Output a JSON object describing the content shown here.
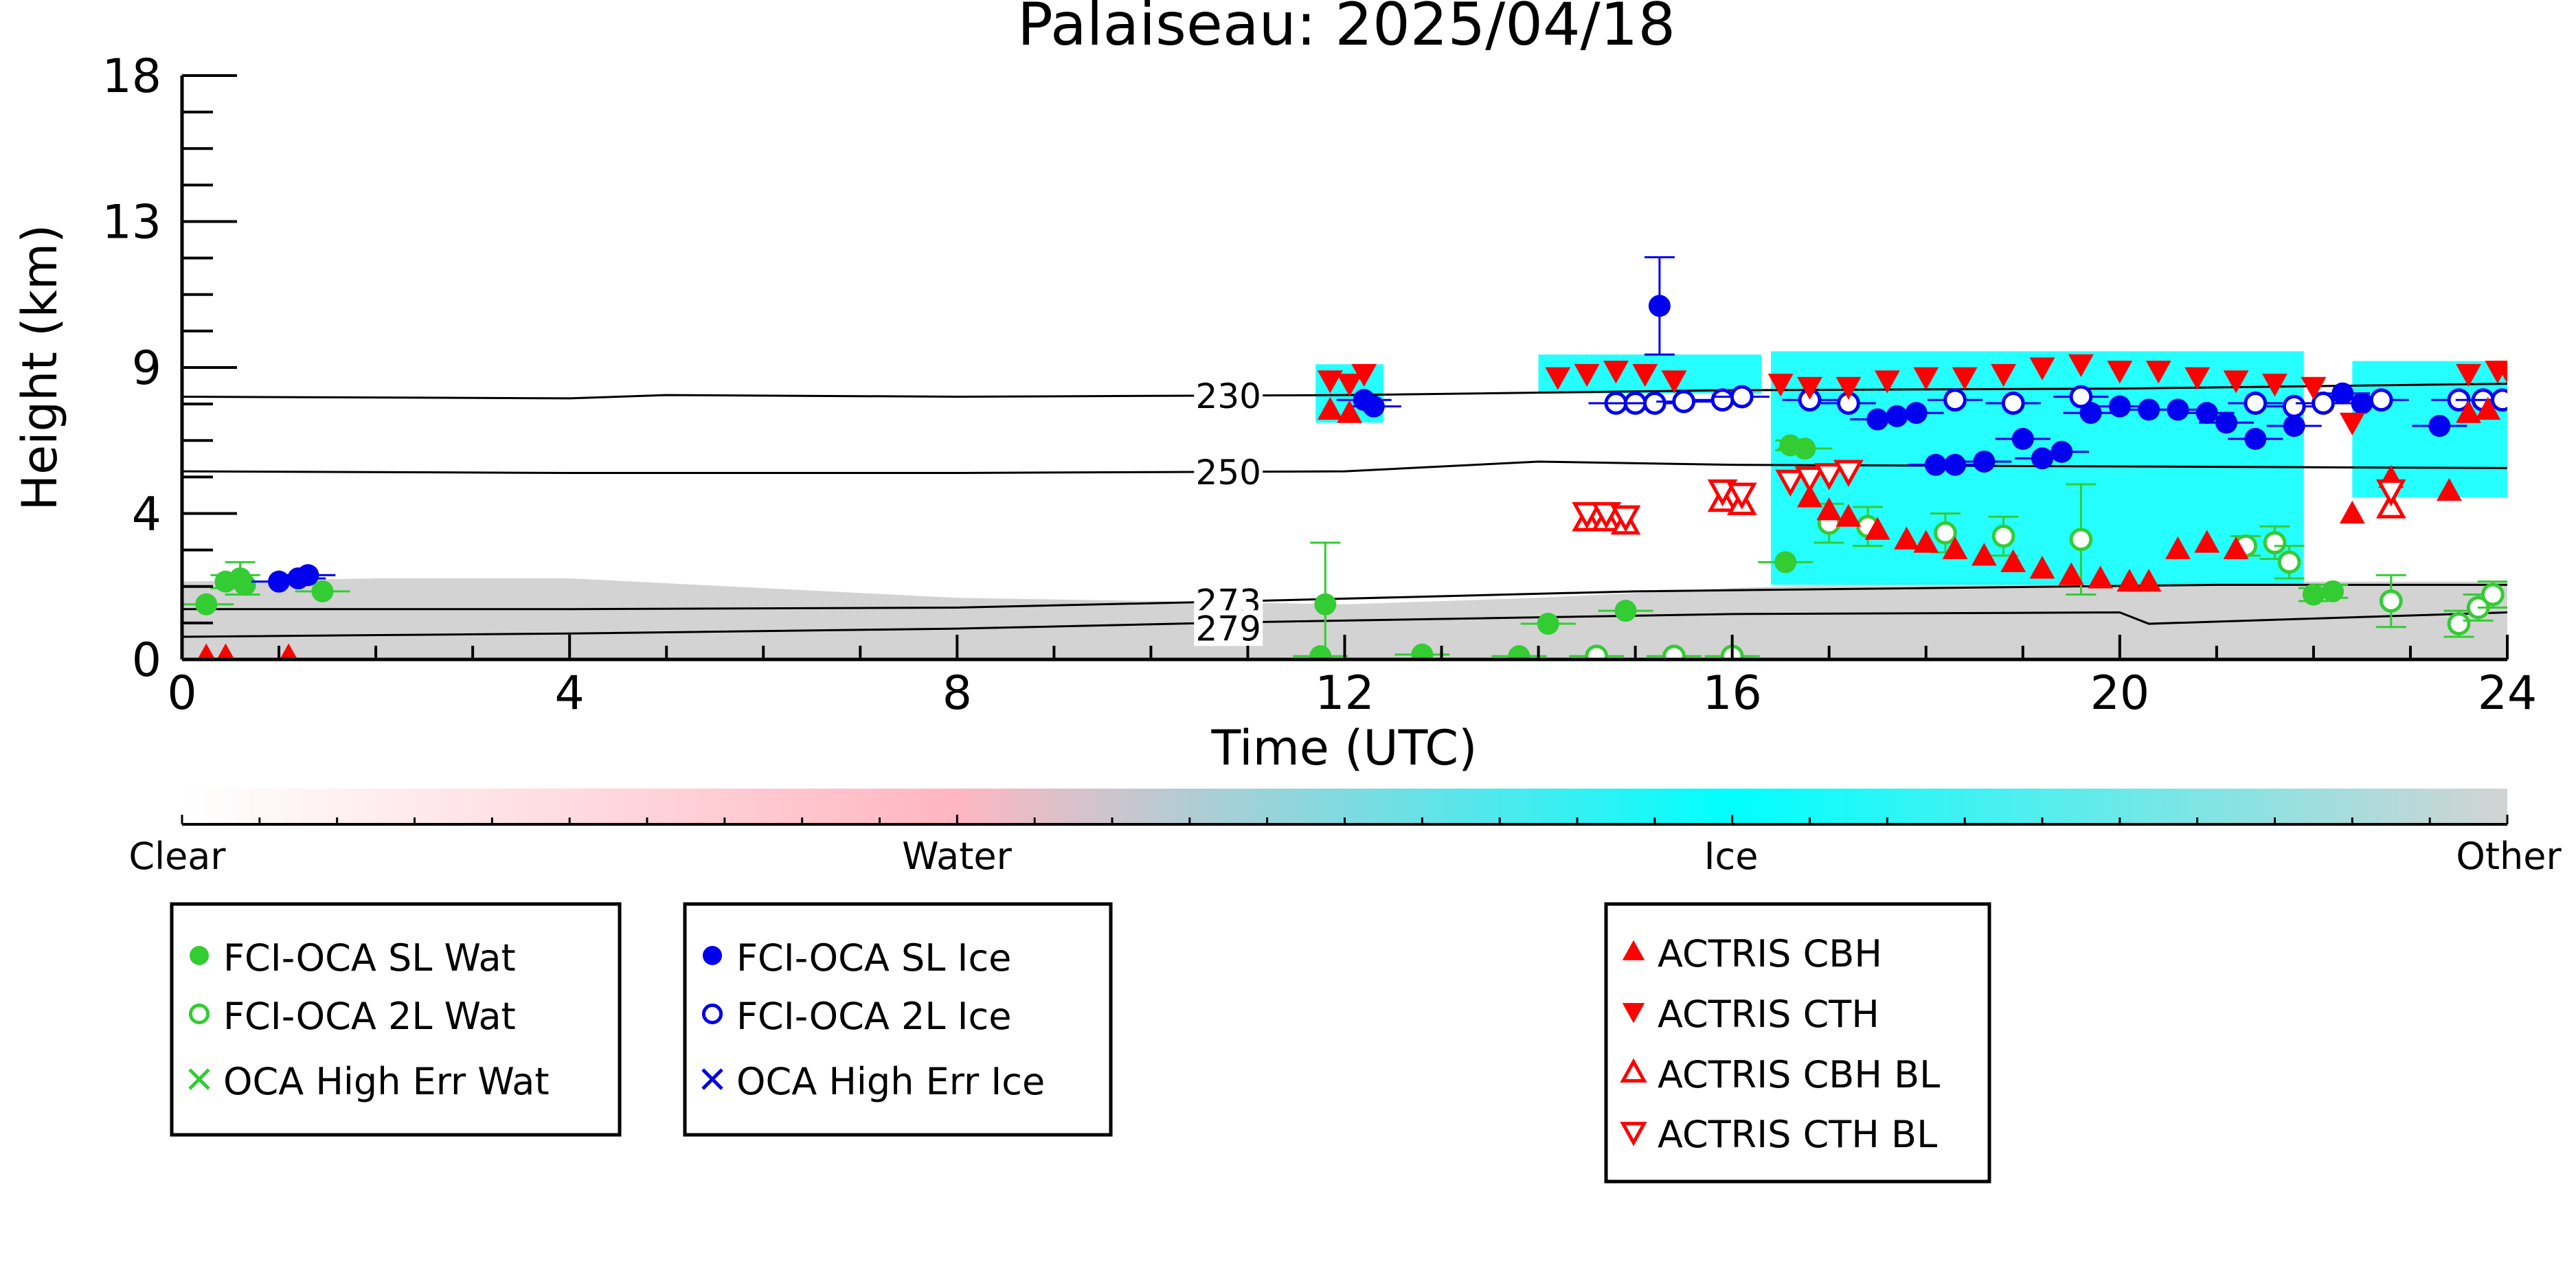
{
  "chart_data": {
    "type": "scatter",
    "title": "Palaiseau: 2025/04/18",
    "xlabel": "Time (UTC)",
    "ylabel": "Height (km)",
    "xlim": [
      0,
      24
    ],
    "ylim": [
      0,
      18
    ],
    "x_ticks": [
      0,
      4,
      8,
      12,
      16,
      20,
      24
    ],
    "y_ticks": [
      0,
      4,
      9,
      13,
      18
    ],
    "background_classification": {
      "colorbar_labels": [
        "Clear",
        "Water",
        "Ice",
        "Other"
      ],
      "colors": {
        "clear": "#ffffff",
        "water": "#ffb6c1",
        "ice": "#00ffff",
        "other": "#d3d3d3"
      },
      "other_layer": [
        [
          0,
          2.4
        ],
        [
          2,
          2.5
        ],
        [
          4,
          2.5
        ],
        [
          6,
          2.2
        ],
        [
          8,
          1.9
        ],
        [
          10,
          1.8
        ],
        [
          12,
          1.7
        ],
        [
          14,
          1.9
        ],
        [
          16,
          2.2
        ],
        [
          18,
          2.4
        ],
        [
          20,
          2.4
        ],
        [
          22,
          2.4
        ],
        [
          24,
          2.4
        ]
      ],
      "ice_regions": [
        {
          "x0": 11.7,
          "x1": 12.4,
          "y0": 7.3,
          "y1": 9.1
        },
        {
          "x0": 14.0,
          "x1": 16.3,
          "y0": 8.2,
          "y1": 9.4
        },
        {
          "x0": 16.4,
          "x1": 21.9,
          "y0": 2.3,
          "y1": 9.5
        },
        {
          "x0": 22.4,
          "x1": 24.0,
          "y0": 5.0,
          "y1": 9.2
        }
      ]
    },
    "isotherms": [
      {
        "label": "230",
        "points": [
          [
            0,
            8.1
          ],
          [
            4,
            8.05
          ],
          [
            5,
            8.15
          ],
          [
            8,
            8.1
          ],
          [
            12,
            8.15
          ],
          [
            16,
            8.3
          ],
          [
            20,
            8.35
          ],
          [
            24,
            8.5
          ]
        ]
      },
      {
        "label": "250",
        "points": [
          [
            0,
            5.8
          ],
          [
            4,
            5.75
          ],
          [
            8,
            5.75
          ],
          [
            12,
            5.8
          ],
          [
            14,
            6.1
          ],
          [
            16,
            6.0
          ],
          [
            20,
            5.95
          ],
          [
            24,
            5.9
          ]
        ]
      },
      {
        "label": "273",
        "points": [
          [
            0,
            1.55
          ],
          [
            4,
            1.55
          ],
          [
            8,
            1.6
          ],
          [
            11,
            1.8
          ],
          [
            15,
            2.1
          ],
          [
            18,
            2.2
          ],
          [
            21,
            2.3
          ],
          [
            24,
            2.3
          ]
        ]
      },
      {
        "label": "279",
        "points": [
          [
            0,
            0.7
          ],
          [
            4,
            0.8
          ],
          [
            8,
            0.95
          ],
          [
            11,
            1.15
          ],
          [
            16,
            1.4
          ],
          [
            20,
            1.45
          ],
          [
            20.3,
            1.1
          ],
          [
            24,
            1.45
          ]
        ]
      }
    ],
    "series": [
      {
        "name": "FCI-OCA SL Wat",
        "color": "#33cc33",
        "marker": "filled-circle",
        "points": [
          [
            0.25,
            1.7,
            0.1
          ],
          [
            0.45,
            2.4,
            0.2
          ],
          [
            0.6,
            2.5,
            0.5
          ],
          [
            0.65,
            2.3,
            0.3
          ],
          [
            1.45,
            2.1,
            0.1
          ],
          [
            11.8,
            1.7,
            1.9
          ],
          [
            11.75,
            0.1,
            0.1
          ],
          [
            12.8,
            0.15,
            0.1
          ],
          [
            13.8,
            0.1,
            0.1
          ],
          [
            14.1,
            1.1,
            0.1
          ],
          [
            14.9,
            1.5,
            0.1
          ],
          [
            16.6,
            6.6,
            0.15
          ],
          [
            16.75,
            6.5,
            0.1
          ],
          [
            16.55,
            3.0,
            0.1
          ],
          [
            22.0,
            2.0,
            0.2
          ],
          [
            22.2,
            2.1,
            0.2
          ]
        ]
      },
      {
        "name": "FCI-OCA 2L Wat",
        "color": "#33cc33",
        "marker": "open-circle",
        "points": [
          [
            14.6,
            0.1,
            0.1
          ],
          [
            15.4,
            0.1,
            0.1
          ],
          [
            16.0,
            0.1,
            0.1
          ],
          [
            17.0,
            4.2,
            0.6
          ],
          [
            17.4,
            4.1,
            0.6
          ],
          [
            18.2,
            3.9,
            0.6
          ],
          [
            18.8,
            3.8,
            0.6
          ],
          [
            19.6,
            3.7,
            1.7
          ],
          [
            21.3,
            3.5,
            0.3
          ],
          [
            21.6,
            3.6,
            0.5
          ],
          [
            21.75,
            3.0,
            0.5
          ],
          [
            22.8,
            1.8,
            0.8
          ],
          [
            23.5,
            1.1,
            0.4
          ],
          [
            23.7,
            1.6,
            0.4
          ],
          [
            23.85,
            2.0,
            0.4
          ]
        ]
      },
      {
        "name": "OCA High Err Wat",
        "color": "#33cc33",
        "marker": "x",
        "points": []
      },
      {
        "name": "FCI-OCA SL Ice",
        "color": "#0000ee",
        "marker": "filled-circle",
        "points": [
          [
            1.0,
            2.4,
            0.05
          ],
          [
            1.2,
            2.5,
            0.05
          ],
          [
            1.3,
            2.6,
            0.05
          ],
          [
            12.2,
            8.0,
            0.1
          ],
          [
            12.3,
            7.8,
            0.1
          ],
          [
            15.25,
            10.9,
            1.5
          ],
          [
            17.5,
            7.4,
            0.1
          ],
          [
            17.7,
            7.5,
            0.1
          ],
          [
            17.9,
            7.6,
            0.1
          ],
          [
            18.1,
            6.0,
            0.1
          ],
          [
            18.3,
            6.0,
            0.1
          ],
          [
            18.6,
            6.1,
            0.1
          ],
          [
            19.0,
            6.8,
            0.1
          ],
          [
            19.2,
            6.2,
            0.1
          ],
          [
            19.4,
            6.4,
            0.1
          ],
          [
            19.7,
            7.6,
            0.1
          ],
          [
            20.0,
            7.8,
            0.1
          ],
          [
            20.3,
            7.7,
            0.1
          ],
          [
            20.6,
            7.7,
            0.1
          ],
          [
            20.9,
            7.6,
            0.1
          ],
          [
            21.1,
            7.3,
            0.1
          ],
          [
            21.4,
            6.8,
            0.1
          ],
          [
            21.8,
            7.2,
            0.1
          ],
          [
            22.3,
            8.2,
            0.1
          ],
          [
            22.5,
            7.9,
            0.1
          ],
          [
            23.3,
            7.2,
            0.1
          ]
        ]
      },
      {
        "name": "FCI-OCA 2L Ice",
        "color": "#0000ee",
        "marker": "open-circle",
        "points": [
          [
            14.8,
            7.9,
            0.1
          ],
          [
            15.0,
            7.9,
            0.1
          ],
          [
            15.2,
            7.9,
            0.1
          ],
          [
            15.5,
            7.95,
            0.1
          ],
          [
            15.9,
            8.0,
            0.1
          ],
          [
            16.1,
            8.1,
            0.1
          ],
          [
            16.8,
            8.0,
            0.1
          ],
          [
            17.2,
            7.9,
            0.1
          ],
          [
            18.3,
            8.0,
            0.1
          ],
          [
            18.9,
            7.9,
            0.1
          ],
          [
            19.6,
            8.1,
            0.1
          ],
          [
            21.4,
            7.9,
            0.1
          ],
          [
            21.8,
            7.8,
            0.1
          ],
          [
            22.1,
            7.9,
            0.1
          ],
          [
            22.7,
            8.0,
            0.1
          ],
          [
            23.5,
            8.0,
            0.1
          ],
          [
            23.75,
            8.0,
            0.1
          ],
          [
            23.95,
            8.0,
            0.1
          ]
        ]
      },
      {
        "name": "OCA High Err Ice",
        "color": "#0000ee",
        "marker": "x",
        "points": []
      },
      {
        "name": "ACTRIS CBH",
        "color": "#ff0000",
        "marker": "filled-triangle-up",
        "points": [
          [
            0.25,
            0.1
          ],
          [
            0.45,
            0.1
          ],
          [
            1.1,
            0.1
          ],
          [
            11.85,
            7.7
          ],
          [
            12.05,
            7.6
          ],
          [
            16.8,
            5.0
          ],
          [
            17.0,
            4.6
          ],
          [
            17.2,
            4.4
          ],
          [
            17.5,
            4.0
          ],
          [
            17.8,
            3.7
          ],
          [
            18.0,
            3.6
          ],
          [
            18.3,
            3.4
          ],
          [
            18.6,
            3.2
          ],
          [
            18.9,
            3.0
          ],
          [
            19.2,
            2.8
          ],
          [
            19.5,
            2.6
          ],
          [
            19.8,
            2.5
          ],
          [
            20.1,
            2.4
          ],
          [
            20.3,
            2.4
          ],
          [
            20.6,
            3.4
          ],
          [
            20.9,
            3.6
          ],
          [
            21.2,
            3.4
          ],
          [
            22.4,
            4.5
          ],
          [
            22.8,
            5.6
          ],
          [
            23.4,
            5.2
          ],
          [
            23.6,
            7.6
          ],
          [
            23.8,
            7.7
          ]
        ]
      },
      {
        "name": "ACTRIS CTH",
        "color": "#ff0000",
        "marker": "filled-triangle-down",
        "points": [
          [
            11.85,
            8.6
          ],
          [
            12.05,
            8.5
          ],
          [
            12.2,
            8.8
          ],
          [
            14.2,
            8.7
          ],
          [
            14.5,
            8.8
          ],
          [
            14.8,
            8.9
          ],
          [
            15.1,
            8.8
          ],
          [
            15.4,
            8.6
          ],
          [
            16.5,
            8.5
          ],
          [
            16.8,
            8.4
          ],
          [
            17.2,
            8.4
          ],
          [
            17.6,
            8.6
          ],
          [
            18.0,
            8.7
          ],
          [
            18.4,
            8.7
          ],
          [
            18.8,
            8.8
          ],
          [
            19.2,
            9.0
          ],
          [
            19.6,
            9.1
          ],
          [
            20.0,
            8.9
          ],
          [
            20.4,
            8.9
          ],
          [
            20.8,
            8.7
          ],
          [
            21.2,
            8.6
          ],
          [
            21.6,
            8.5
          ],
          [
            22.0,
            8.4
          ],
          [
            22.4,
            7.3
          ],
          [
            23.6,
            8.8
          ],
          [
            23.9,
            8.9
          ],
          [
            24.0,
            8.9
          ]
        ]
      },
      {
        "name": "ACTRIS CBH BL",
        "color": "#ff0000",
        "marker": "open-triangle-up",
        "points": [
          [
            14.5,
            4.3
          ],
          [
            14.7,
            4.3
          ],
          [
            14.9,
            4.2
          ],
          [
            15.9,
            4.9
          ],
          [
            16.1,
            4.8
          ],
          [
            22.8,
            4.7
          ]
        ]
      },
      {
        "name": "ACTRIS CTH BL",
        "color": "#ff0000",
        "marker": "open-triangle-down",
        "points": [
          [
            14.5,
            4.5
          ],
          [
            14.7,
            4.5
          ],
          [
            14.9,
            4.4
          ],
          [
            15.9,
            5.2
          ],
          [
            16.1,
            5.1
          ],
          [
            16.6,
            5.5
          ],
          [
            16.8,
            5.6
          ],
          [
            17.0,
            5.7
          ],
          [
            17.2,
            5.8
          ],
          [
            22.8,
            5.2
          ]
        ]
      }
    ]
  },
  "legends": [
    {
      "items": [
        {
          "label": "FCI-OCA SL Wat",
          "color": "#33cc33",
          "marker": "filled-circle"
        },
        {
          "label": "FCI-OCA 2L Wat",
          "color": "#33cc33",
          "marker": "open-circle"
        },
        {
          "label": "OCA High Err Wat",
          "color": "#33cc33",
          "marker": "x"
        }
      ]
    },
    {
      "items": [
        {
          "label": "FCI-OCA SL Ice",
          "color": "#0000ee",
          "marker": "filled-circle"
        },
        {
          "label": "FCI-OCA 2L Ice",
          "color": "#0000ee",
          "marker": "open-circle"
        },
        {
          "label": "OCA High Err Ice",
          "color": "#0000ee",
          "marker": "x"
        }
      ]
    },
    {
      "items": [
        {
          "label": "ACTRIS CBH",
          "color": "#ff0000",
          "marker": "filled-triangle-up"
        },
        {
          "label": "ACTRIS CTH",
          "color": "#ff0000",
          "marker": "filled-triangle-down"
        },
        {
          "label": "ACTRIS CBH BL",
          "color": "#ff0000",
          "marker": "open-triangle-up"
        },
        {
          "label": "ACTRIS CTH BL",
          "color": "#ff0000",
          "marker": "open-triangle-down"
        }
      ]
    }
  ]
}
